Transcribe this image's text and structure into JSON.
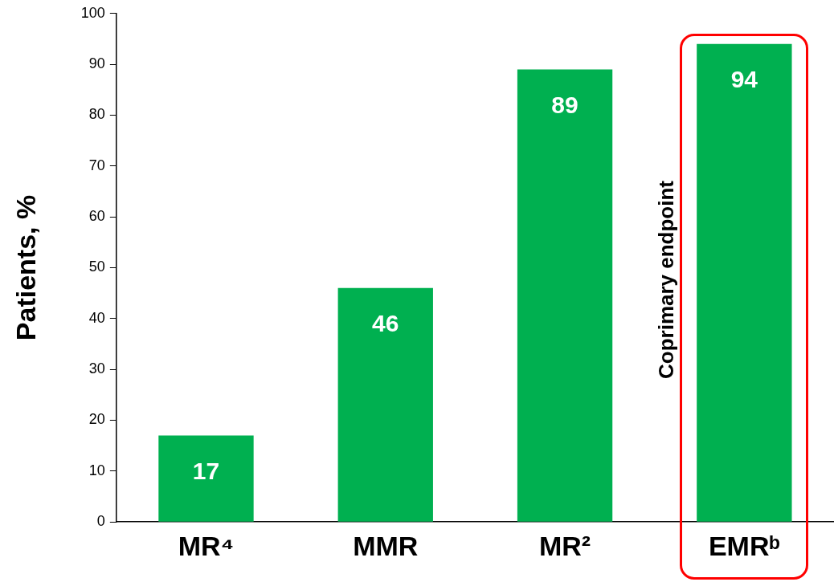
{
  "chart_data": {
    "type": "bar",
    "ylabel": "Patients, %",
    "categories": [
      "MR⁴",
      "MMR",
      "MR²",
      "EMRᵇ"
    ],
    "values": [
      17,
      46,
      89,
      94
    ],
    "color": "#00b050",
    "ylim": [
      0,
      100
    ],
    "yticks": [
      0,
      10,
      20,
      30,
      40,
      50,
      60,
      70,
      80,
      90,
      100
    ],
    "grid": false,
    "legend": false,
    "data_labels": true,
    "annotations": [
      "Coprimary endpoint"
    ]
  }
}
